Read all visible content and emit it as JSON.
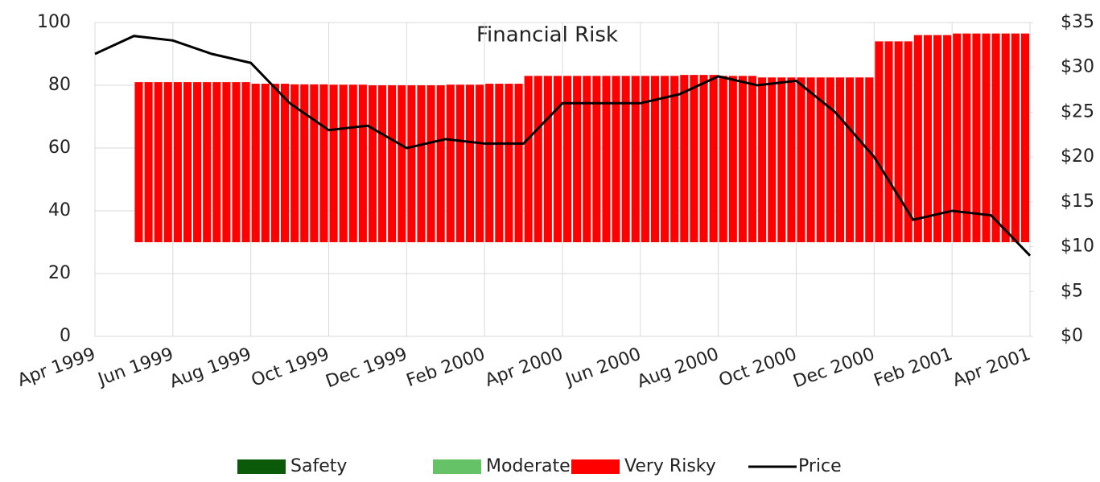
{
  "chart_data": {
    "type": "bar_line",
    "title": "Financial Risk",
    "xlim": [
      "1999-04",
      "2001-04"
    ],
    "xticks": [
      {
        "value": "1999-04",
        "label": "Apr 1999"
      },
      {
        "value": "1999-06",
        "label": "Jun 1999"
      },
      {
        "value": "1999-08",
        "label": "Aug 1999"
      },
      {
        "value": "1999-10",
        "label": "Oct 1999"
      },
      {
        "value": "1999-12",
        "label": "Dec 1999"
      },
      {
        "value": "2000-02",
        "label": "Feb 2000"
      },
      {
        "value": "2000-04",
        "label": "Apr 2000"
      },
      {
        "value": "2000-06",
        "label": "Jun 2000"
      },
      {
        "value": "2000-08",
        "label": "Aug 2000"
      },
      {
        "value": "2000-10",
        "label": "Oct 2000"
      },
      {
        "value": "2000-12",
        "label": "Dec 2000"
      },
      {
        "value": "2001-02",
        "label": "Feb 2001"
      },
      {
        "value": "2001-04",
        "label": "Apr 2001"
      }
    ],
    "ylim": [
      0,
      100
    ],
    "yticks": [
      0,
      20,
      40,
      60,
      80,
      100
    ],
    "y2lim": [
      0,
      35
    ],
    "y2ticks": [
      {
        "value": 0,
        "label": "$0"
      },
      {
        "value": 5,
        "label": "$5"
      },
      {
        "value": 10,
        "label": "$10"
      },
      {
        "value": 15,
        "label": "$15"
      },
      {
        "value": 20,
        "label": "$20"
      },
      {
        "value": 25,
        "label": "$25"
      },
      {
        "value": 30,
        "label": "$30"
      },
      {
        "value": 35,
        "label": "$35"
      }
    ],
    "grid": true,
    "series": [
      {
        "name": "Safety",
        "color": "#0a5a0a"
      },
      {
        "name": "Moderate",
        "color": "#66c266"
      },
      {
        "name": "Very Risky",
        "color": "#ff0000",
        "base": 30,
        "x": [
          "1999-05",
          "1999-06",
          "1999-07",
          "1999-08",
          "1999-09",
          "1999-10",
          "1999-11",
          "1999-12",
          "2000-01",
          "2000-02",
          "2000-03",
          "2000-04",
          "2000-05",
          "2000-06",
          "2000-07",
          "2000-08",
          "2000-09",
          "2000-10",
          "2000-11",
          "2000-12",
          "2001-01",
          "2001-02",
          "2001-03"
        ],
        "values": [
          81,
          81,
          81,
          80.5,
          80.3,
          80.2,
          80,
          80,
          80.2,
          80.5,
          83,
          83,
          83,
          83,
          83.3,
          83,
          82.5,
          82.5,
          82.5,
          94,
          96,
          96.5,
          96.5
        ]
      },
      {
        "name": "Price",
        "color": "#000000",
        "axis": "y2",
        "x": [
          "1999-04",
          "1999-05",
          "1999-06",
          "1999-07",
          "1999-08",
          "1999-09",
          "1999-10",
          "1999-11",
          "1999-12",
          "2000-01",
          "2000-02",
          "2000-03",
          "2000-04",
          "2000-05",
          "2000-06",
          "2000-07",
          "2000-08",
          "2000-09",
          "2000-10",
          "2000-11",
          "2000-12",
          "2001-01",
          "2001-02",
          "2001-03",
          "2001-04"
        ],
        "values": [
          31.5,
          33.5,
          33,
          31.5,
          30.5,
          26,
          23,
          23.5,
          21,
          22,
          21.5,
          21.5,
          26,
          26,
          26,
          27,
          29,
          28,
          28.5,
          25,
          20,
          13,
          14,
          13.5,
          9
        ]
      }
    ]
  }
}
